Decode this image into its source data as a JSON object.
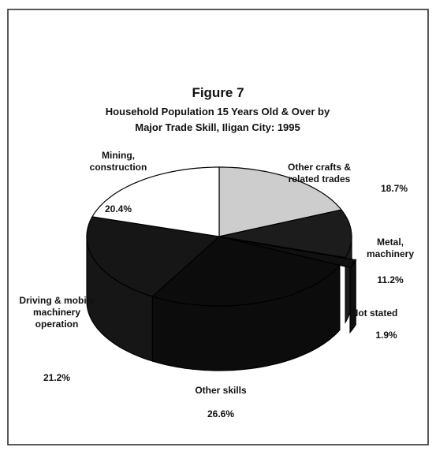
{
  "chart_data": {
    "type": "pie",
    "title": "Figure 7",
    "subtitle": "Household Population 15 Years Old & Over by Major Trade Skill, Iligan City: 1995",
    "categories": [
      "Other crafts & related trades",
      "Metal, machinery",
      "Not stated",
      "Other skills",
      "Driving & mobile machinery operation",
      "Mining, construction"
    ],
    "values": [
      18.7,
      11.2,
      1.9,
      26.6,
      21.2,
      20.4
    ],
    "value_labels": [
      "18.7%",
      "11.2%",
      "1.9%",
      "26.6%",
      "21.2%",
      "20.4%"
    ],
    "colors": [
      "#cdcdcd",
      "#1c1c1c",
      "#101010",
      "#0c0c0c",
      "#161616",
      "#ffffff"
    ],
    "exploded": [
      "Not stated"
    ]
  }
}
